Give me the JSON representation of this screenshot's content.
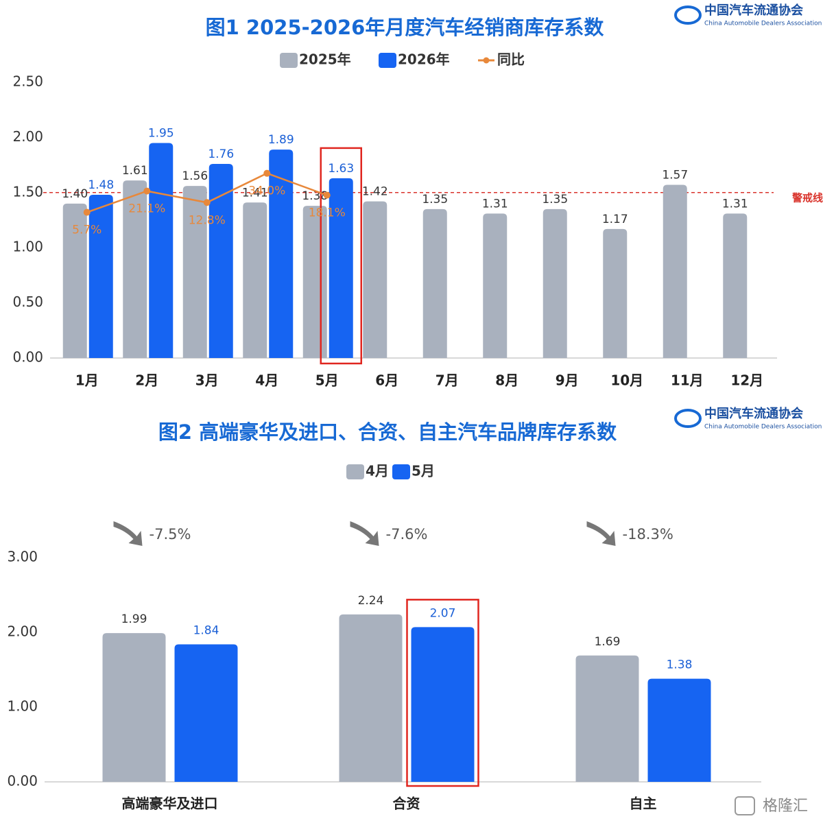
{
  "chart_data": [
    {
      "type": "bar",
      "title": "图1 2025-2026年月度汽车经销商库存系数",
      "source": "中国汽车流通协会",
      "source_en": "China Automobile Dealers Association",
      "categories": [
        "1月",
        "2月",
        "3月",
        "4月",
        "5月",
        "6月",
        "7月",
        "8月",
        "9月",
        "10月",
        "11月",
        "12月"
      ],
      "series": [
        {
          "name": "2025年",
          "color": "#a9b1be",
          "values": [
            1.4,
            1.61,
            1.56,
            1.41,
            1.38,
            1.42,
            1.35,
            1.31,
            1.35,
            1.17,
            1.57,
            1.31
          ],
          "value_labels": [
            "1.40",
            "1.61",
            "1.56",
            "1.41",
            "1.38",
            "1.42",
            "1.35",
            "1.31",
            "1.35",
            "1.17",
            "1.57",
            "1.31"
          ]
        },
        {
          "name": "2026年",
          "color": "#1664f2",
          "values": [
            1.48,
            1.95,
            1.76,
            1.89,
            1.63,
            null,
            null,
            null,
            null,
            null,
            null,
            null
          ],
          "value_labels": [
            "1.48",
            "1.95",
            "1.76",
            "1.89",
            "1.63",
            null,
            null,
            null,
            null,
            null,
            null,
            null
          ]
        },
        {
          "name": "同比",
          "type": "line",
          "axis": "y2",
          "color": "#e8883a",
          "values": [
            5.7,
            21.1,
            12.8,
            34.0,
            18.1,
            null,
            null,
            null,
            null,
            null,
            null,
            null
          ],
          "value_labels": [
            "5.7%",
            "21.1%",
            "12.8%",
            "34.0%",
            "18.1%",
            null,
            null,
            null,
            null,
            null,
            null,
            null
          ]
        }
      ],
      "ylim": [
        0,
        2.5
      ],
      "yticks": [
        {
          "value": 0,
          "label": "0.00"
        },
        {
          "value": 0.5,
          "label": "0.50"
        },
        {
          "value": 1,
          "label": "1.00"
        },
        {
          "value": 1.5,
          "label": "1.50"
        },
        {
          "value": 2,
          "label": "2.00"
        },
        {
          "value": 2.5,
          "label": "2.50"
        }
      ],
      "y2lim": [
        -100,
        100
      ],
      "threshold": {
        "value": 1.5,
        "label": "警戒线",
        "color": "#d9332b"
      },
      "highlight_category": "5月",
      "highlight_series": "2026年",
      "highlight_color": "#e0261f"
    },
    {
      "type": "bar",
      "title": "图2 高端豪华及进口、合资、自主汽车品牌库存系数",
      "source": "中国汽车流通协会",
      "source_en": "China Automobile Dealers Association",
      "categories": [
        "高端豪华及进口",
        "合资",
        "自主"
      ],
      "series": [
        {
          "name": "4月",
          "color": "#a9b1be",
          "values": [
            1.99,
            2.24,
            1.69
          ]
        },
        {
          "name": "5月",
          "color": "#1664f2",
          "values": [
            1.84,
            2.07,
            1.38
          ]
        }
      ],
      "annotations": [
        "-7.5%",
        "-7.6%",
        "-18.3%"
      ],
      "ylim": [
        0,
        3
      ],
      "yticks": [
        {
          "value": 0,
          "label": "0.00"
        },
        {
          "value": 1,
          "label": "1.00"
        },
        {
          "value": 2,
          "label": "2.00"
        },
        {
          "value": 3,
          "label": "3.00"
        }
      ],
      "highlight_category": "合资",
      "highlight_series": "5月",
      "highlight_color": "#e0261f"
    }
  ],
  "credit": "格隆汇"
}
